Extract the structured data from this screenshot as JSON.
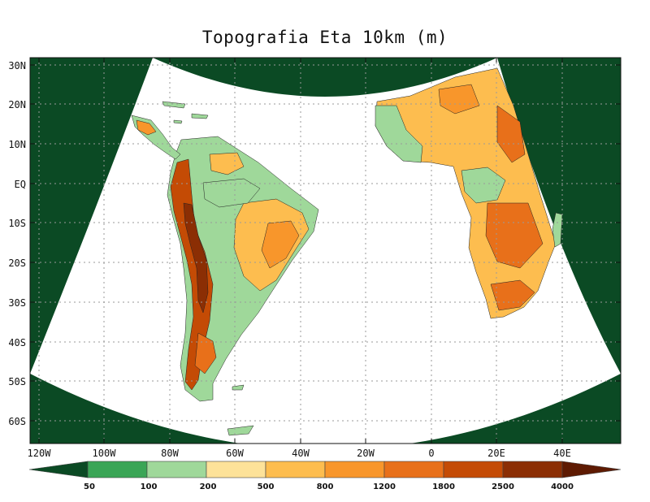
{
  "title": "Topografia Eta 10km (m)",
  "axes": {
    "lat_labels": [
      "30N",
      "20N",
      "10N",
      "EQ",
      "10S",
      "20S",
      "30S",
      "40S",
      "50S",
      "60S"
    ],
    "lon_labels": [
      "120W",
      "100W",
      "80W",
      "60W",
      "40W",
      "20W",
      "0",
      "20E",
      "40E"
    ]
  },
  "colors": {
    "outside_domain": "#0b4a24",
    "ocean": "#ffffff",
    "grid": "#9a9a9a"
  },
  "colorbar": {
    "thresholds": [
      "50",
      "100",
      "200",
      "500",
      "800",
      "1200",
      "1800",
      "2500",
      "4000"
    ],
    "colors": [
      "#0b4a24",
      "#3aa556",
      "#9fd89a",
      "#fde299",
      "#fdbd4f",
      "#f8962b",
      "#e8701a",
      "#c44b05",
      "#8b2e04",
      "#5e1a02"
    ]
  }
}
